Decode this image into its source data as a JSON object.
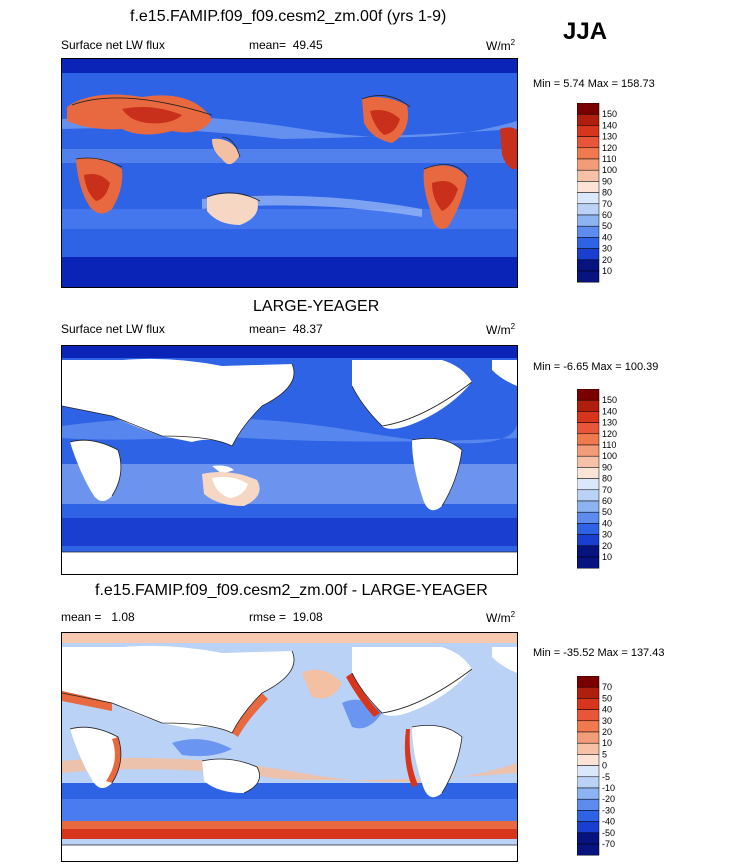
{
  "season": "JJA",
  "colors": {
    "ocean_blue": "#2f63e6",
    "deep_blue": "#0a24b8",
    "light_blue": "#b9d2f6",
    "pale": "#f4f0ee",
    "orange": "#f07a4e",
    "red": "#d8361c",
    "land": "#ffffff"
  },
  "chart_data": [
    {
      "type": "heatmap",
      "title": "f.e15.FAMIP.f09_f09.cesm2_zm.00f (yrs 1-9)",
      "variable": "Surface net LW flux",
      "mean_label": "mean=",
      "mean": "49.45",
      "units": "W/m",
      "units_sup": "2",
      "minmax": "Min =   5.74 Max = 158.73",
      "min": 5.74,
      "max": 158.73,
      "colorbar_ticks": [
        "150",
        "140",
        "130",
        "120",
        "110",
        "100",
        "90",
        "80",
        "70",
        "60",
        "50",
        "40",
        "30",
        "20",
        "10"
      ]
    },
    {
      "type": "heatmap",
      "title": "LARGE-YEAGER",
      "variable": "Surface net LW flux",
      "mean_label": "mean=",
      "mean": "48.37",
      "units": "W/m",
      "units_sup": "2",
      "minmax": "Min =  -6.65 Max = 100.39",
      "min": -6.65,
      "max": 100.39,
      "colorbar_ticks": [
        "150",
        "140",
        "130",
        "120",
        "110",
        "100",
        "90",
        "80",
        "70",
        "60",
        "50",
        "40",
        "30",
        "20",
        "10"
      ]
    },
    {
      "type": "heatmap",
      "title": "f.e15.FAMIP.f09_f09.cesm2_zm.00f - LARGE-YEAGER",
      "mean_label": "mean =",
      "mean": "1.08",
      "rmse_label": "rmse =",
      "rmse": "19.08",
      "units": "W/m",
      "units_sup": "2",
      "minmax": "Min = -35.52 Max = 137.43",
      "min": -35.52,
      "max": 137.43,
      "colorbar_ticks": [
        "70",
        "50",
        "40",
        "30",
        "20",
        "10",
        "5",
        "0",
        "-5",
        "-10",
        "-20",
        "-30",
        "-40",
        "-50",
        "-70"
      ]
    }
  ]
}
